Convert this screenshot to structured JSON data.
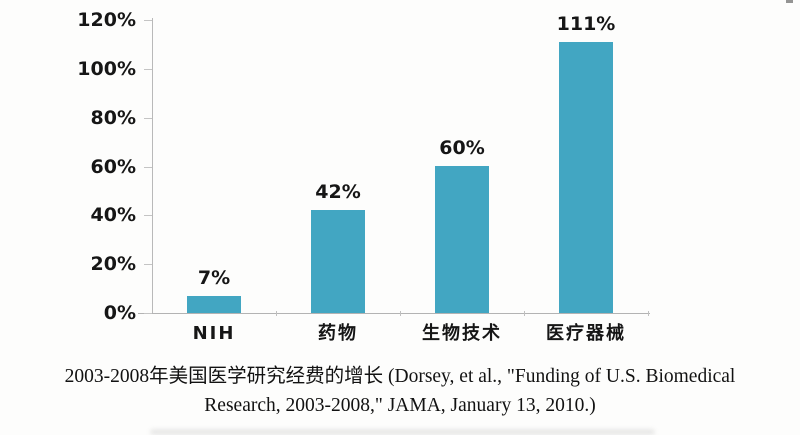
{
  "chart_data": {
    "type": "bar",
    "categories": [
      "NIH",
      "药物",
      "生物技术",
      "医疗器械"
    ],
    "values": [
      7,
      42,
      60,
      111
    ],
    "value_labels": [
      "7%",
      "42%",
      "60%",
      "111%"
    ],
    "y_ticks": [
      "0%",
      "20%",
      "40%",
      "60%",
      "80%",
      "100%",
      "120%"
    ],
    "y_tick_values": [
      0,
      20,
      40,
      60,
      80,
      100,
      120
    ],
    "ylim": [
      0,
      120
    ],
    "xlabel": "",
    "ylabel": "",
    "title": "",
    "grid": false,
    "legend_position": "none",
    "bar_color": "#42a6c2",
    "axis_color": "#b9b9b9",
    "label_color": "#161616"
  },
  "caption": {
    "line1": "2003-2008年美国医学研究经费的增长 (Dorsey, et al., \"Funding of U.S. Biomedical",
    "line2": "Research, 2003-2008,\" JAMA, January 13, 2010.)"
  }
}
